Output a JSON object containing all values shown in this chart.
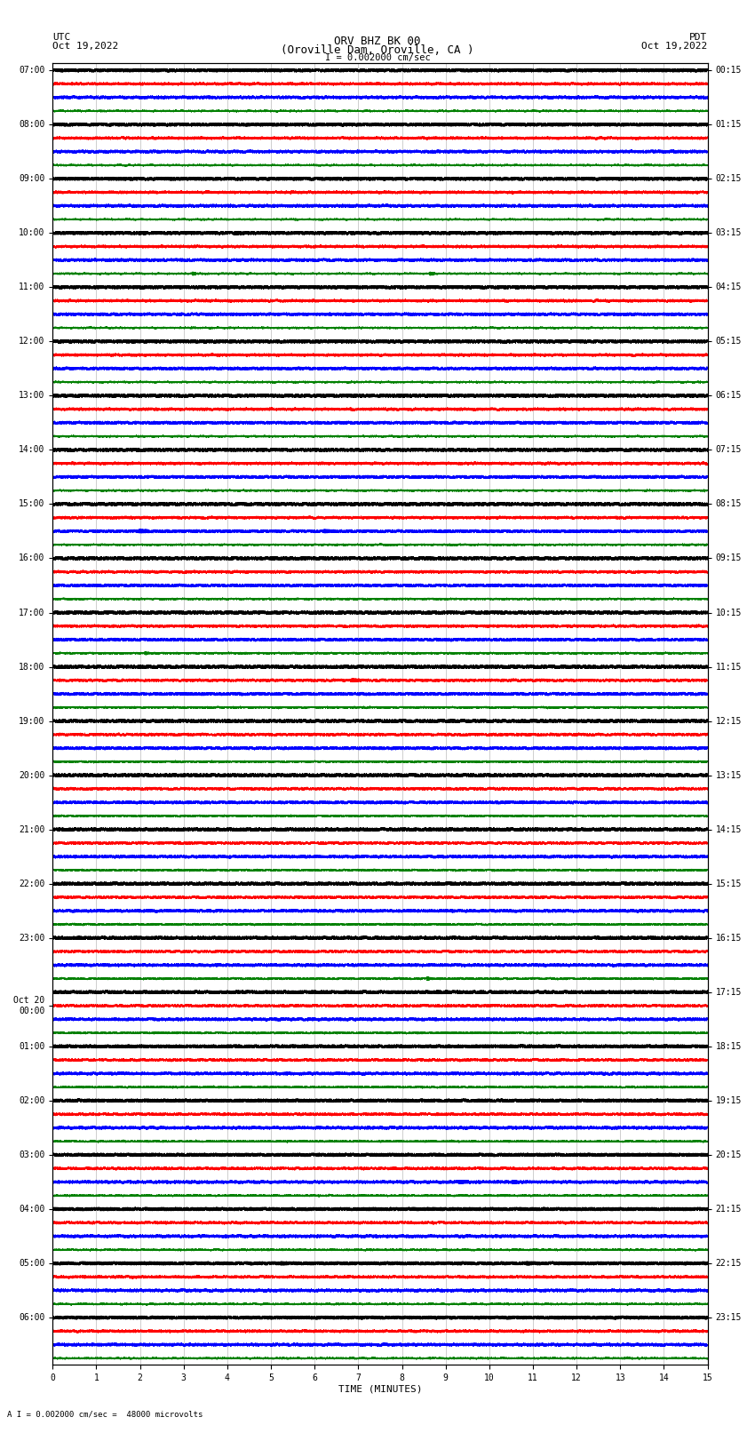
{
  "title_line1": "ORV BHZ BK 00",
  "title_line2": "(Oroville Dam, Oroville, CA )",
  "scale_label": "I = 0.002000 cm/sec",
  "bottom_label": "A I = 0.002000 cm/sec =  48000 microvolts",
  "xlabel": "TIME (MINUTES)",
  "left_label": "UTC",
  "left_date": "Oct 19,2022",
  "right_label": "PDT",
  "right_date": "Oct 19,2022",
  "left_times_utc": [
    "07:00",
    "",
    "",
    "",
    "08:00",
    "",
    "",
    "",
    "09:00",
    "",
    "",
    "",
    "10:00",
    "",
    "",
    "",
    "11:00",
    "",
    "",
    "",
    "12:00",
    "",
    "",
    "",
    "13:00",
    "",
    "",
    "",
    "14:00",
    "",
    "",
    "",
    "15:00",
    "",
    "",
    "",
    "16:00",
    "",
    "",
    "",
    "17:00",
    "",
    "",
    "",
    "18:00",
    "",
    "",
    "",
    "19:00",
    "",
    "",
    "",
    "20:00",
    "",
    "",
    "",
    "21:00",
    "",
    "",
    "",
    "22:00",
    "",
    "",
    "",
    "23:00",
    "",
    "",
    "",
    "Oct 20",
    "00:00",
    "",
    "",
    "01:00",
    "",
    "",
    "",
    "02:00",
    "",
    "",
    "",
    "03:00",
    "",
    "",
    "",
    "04:00",
    "",
    "",
    "",
    "05:00",
    "",
    "",
    "",
    "06:00",
    "",
    "",
    ""
  ],
  "right_times_pdt": [
    "00:15",
    "",
    "",
    "",
    "01:15",
    "",
    "",
    "",
    "02:15",
    "",
    "",
    "",
    "03:15",
    "",
    "",
    "",
    "04:15",
    "",
    "",
    "",
    "05:15",
    "",
    "",
    "",
    "06:15",
    "",
    "",
    "",
    "07:15",
    "",
    "",
    "",
    "08:15",
    "",
    "",
    "",
    "09:15",
    "",
    "",
    "",
    "10:15",
    "",
    "",
    "",
    "11:15",
    "",
    "",
    "",
    "12:15",
    "",
    "",
    "",
    "13:15",
    "",
    "",
    "",
    "14:15",
    "",
    "",
    "",
    "15:15",
    "",
    "",
    "",
    "16:15",
    "",
    "",
    "",
    "17:15",
    "",
    "",
    "",
    "18:15",
    "",
    "",
    "",
    "19:15",
    "",
    "",
    "",
    "20:15",
    "",
    "",
    "",
    "21:15",
    "",
    "",
    "",
    "22:15",
    "",
    "",
    "",
    "23:15",
    "",
    "",
    ""
  ],
  "trace_colors": [
    "black",
    "red",
    "blue",
    "green"
  ],
  "n_rows": 96,
  "n_minutes": 15,
  "sample_rate": 40,
  "background_color": "white",
  "grid_color": "#aaaaaa",
  "row_amplitude": 0.28,
  "noise_amplitude": 0.06
}
